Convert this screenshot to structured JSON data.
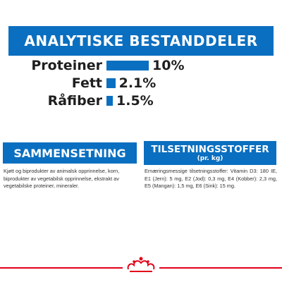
{
  "analysis": {
    "title": "ANALYTISKE BESTANDDELER",
    "rows": [
      {
        "label": "Proteiner",
        "value": "10%",
        "percent": 10
      },
      {
        "label": "Fett",
        "value": "2.1%",
        "percent": 2.1
      },
      {
        "label": "Råfiber",
        "value": "1.5%",
        "percent": 1.5
      }
    ]
  },
  "composition": {
    "title": "SAMMENSETNING",
    "text": "Kjøtt og biprodukter av animalsk opprinnelse, korn, biprodukter av vegetabilsk opprinnelse, ekstrakt av vegetabilske proteiner, mineraler."
  },
  "additives": {
    "title": "TILSETNINGSSTOFFER",
    "subtitle": "(pr. kg)",
    "text": "Ernæringsmessige tilsetningsstoffer: Vitamin D3: 180 IE, E1 (Jern): 5 mg, E2 (Jod): 0,3 mg, E4 (Kobber): 2,3 mg, E5 (Mangan): 1,5 mg, E6 (Sink): 15 mg."
  },
  "colors": {
    "accent": "#0a6fc0",
    "brand_red": "#e2001a"
  },
  "icons": {
    "footer": "royal-canin-crown-icon"
  }
}
